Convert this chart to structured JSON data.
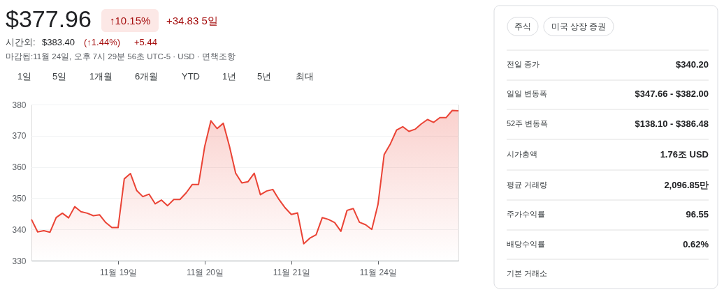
{
  "chart_data": [
    {
      "type": "area",
      "title": "$377.96",
      "subtitle": "마감됨:11월 24일, 오후 7시 29분 56초 UTC-5 · USD · 면책조항",
      "annotations": [
        "↑10.15%",
        "+34.83 5일",
        "시간외:",
        "$383.40",
        "(↑1.44%)",
        "+5.44",
        "1일",
        "5일",
        "1개월",
        "6개월",
        "YTD",
        "1년",
        "5년",
        "최대"
      ],
      "categories": [
        null,
        null,
        null,
        null,
        null,
        null,
        null,
        null,
        null,
        null,
        null,
        null,
        null,
        null,
        "11월 19일",
        null,
        null,
        null,
        null,
        null,
        null,
        null,
        null,
        null,
        null,
        null,
        null,
        null,
        "11월 20일",
        null,
        null,
        null,
        null,
        null,
        null,
        null,
        null,
        null,
        null,
        null,
        null,
        null,
        "11월 21일",
        null,
        null,
        null,
        null,
        null,
        null,
        null,
        null,
        null,
        null,
        null,
        null,
        null,
        "11월 24일",
        null,
        null,
        null,
        null,
        null,
        null,
        null,
        null,
        null,
        null,
        null,
        null,
        null
      ],
      "values": [
        343.2,
        339.2,
        339.6,
        339.1,
        343.8,
        345.2,
        343.7,
        347.3,
        345.7,
        345.2,
        344.4,
        344.7,
        342.2,
        340.6,
        340.6,
        356.2,
        357.9,
        352.5,
        350.5,
        351.3,
        348.2,
        349.4,
        347.6,
        349.6,
        349.6,
        351.7,
        354.4,
        354.4,
        366.6,
        374.8,
        372.3,
        374.0,
        366.6,
        358.0,
        354.9,
        355.3,
        358.0,
        351.1,
        352.3,
        352.8,
        349.6,
        346.9,
        344.8,
        345.3,
        335.4,
        337.2,
        338.3,
        343.8,
        343.2,
        342.2,
        339.4,
        346.1,
        346.7,
        342.3,
        341.5,
        340.0,
        348.0,
        364.0,
        367.4,
        371.8,
        372.9,
        371.4,
        372.1,
        373.8,
        375.2,
        374.3,
        375.8,
        375.8,
        378.1,
        378.0
      ],
      "color": "#ea4335",
      "ylim": [
        330,
        380
      ],
      "yticks": [
        330,
        340,
        350,
        360,
        370,
        380
      ],
      "grid": "y"
    },
    {
      "type": "other",
      "annotations": [
        "주식",
        "미국 상장 증권",
        "전일 종가",
        "$340.20",
        "일일 변동폭",
        "$347.66 - $382.00",
        "52주 변동폭",
        "$138.10 - $386.48",
        "시가총액",
        "1.76조 USD",
        "평균 거래량",
        "2,096.85만",
        "주가수익률",
        "96.55",
        "배당수익률",
        "0.62%",
        "기본 거래소"
      ]
    }
  ]
}
